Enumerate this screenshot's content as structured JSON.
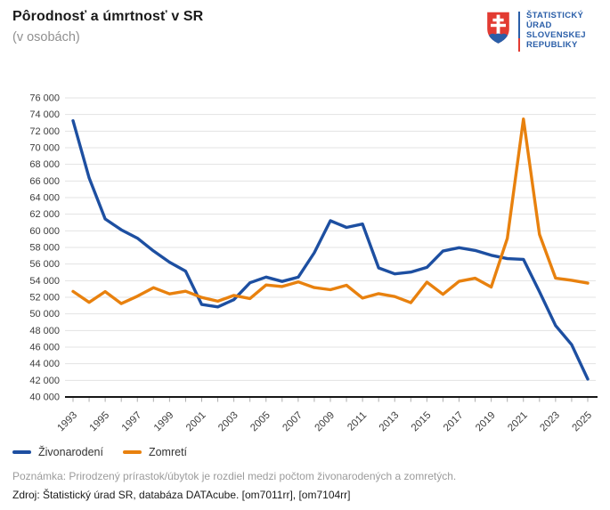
{
  "header": {
    "title": "Pôrodnosť a úmrtnosť v SR",
    "subtitle": "(v osobách)",
    "logo": {
      "emblem": "slovak-coat-of-arms",
      "line1": "ŠTATISTICKÝ",
      "line2": "ÚRAD",
      "line3": "SLOVENSKEJ",
      "line4": "REPUBLIKY",
      "text_color": "#2a5ea8",
      "red_color": "#e23b32"
    }
  },
  "chart_data": {
    "type": "line",
    "title": "Pôrodnosť a úmrtnosť v SR",
    "subtitle": "(v osobách)",
    "x": [
      1993,
      1994,
      1995,
      1996,
      1997,
      1998,
      1999,
      2000,
      2001,
      2002,
      2003,
      2004,
      2005,
      2006,
      2007,
      2008,
      2009,
      2010,
      2011,
      2012,
      2013,
      2014,
      2015,
      2016,
      2017,
      2018,
      2019,
      2020,
      2021,
      2022,
      2023,
      2024,
      2025
    ],
    "series": [
      {
        "name": "Živonarodení",
        "color": "#1d4fa1",
        "values": [
          73256,
          66370,
          61427,
          60123,
          59111,
          57582,
          56223,
          55151,
          51136,
          50841,
          51713,
          53747,
          54430,
          53904,
          54424,
          57360,
          61217,
          60410,
          60813,
          55535,
          54823,
          55033,
          55602,
          57557,
          57969,
          57639,
          57054,
          56650,
          56565,
          52668,
          48597,
          46300,
          42150
        ]
      },
      {
        "name": "Zomretí",
        "color": "#e8810e",
        "values": [
          52707,
          51386,
          52686,
          51236,
          52124,
          53156,
          52402,
          52724,
          51980,
          51532,
          52230,
          51852,
          53475,
          53301,
          53856,
          53164,
          52913,
          53445,
          51903,
          52437,
          52089,
          51346,
          53826,
          52351,
          53914,
          54293,
          53234,
          59089,
          73461,
          59565,
          54300,
          54050,
          53700
        ]
      }
    ],
    "ylim": [
      40000,
      76000
    ],
    "ytick_step": 2000,
    "xtick_label_years": [
      1993,
      1995,
      1997,
      1999,
      2001,
      2003,
      2005,
      2007,
      2009,
      2011,
      2013,
      2015,
      2017,
      2019,
      2021,
      2023,
      2025
    ],
    "grid": "horizontal",
    "legend_position": "bottom-left",
    "xlabel": "",
    "ylabel": ""
  },
  "footer": {
    "note": "Poznámka: Prirodzený prírastok/úbytok je rozdiel medzi počtom živonarodených a zomretých.",
    "source": "Zdroj: Štatistický úrad SR, databáza DATAcube. [om7011rr], [om7104rr]"
  }
}
